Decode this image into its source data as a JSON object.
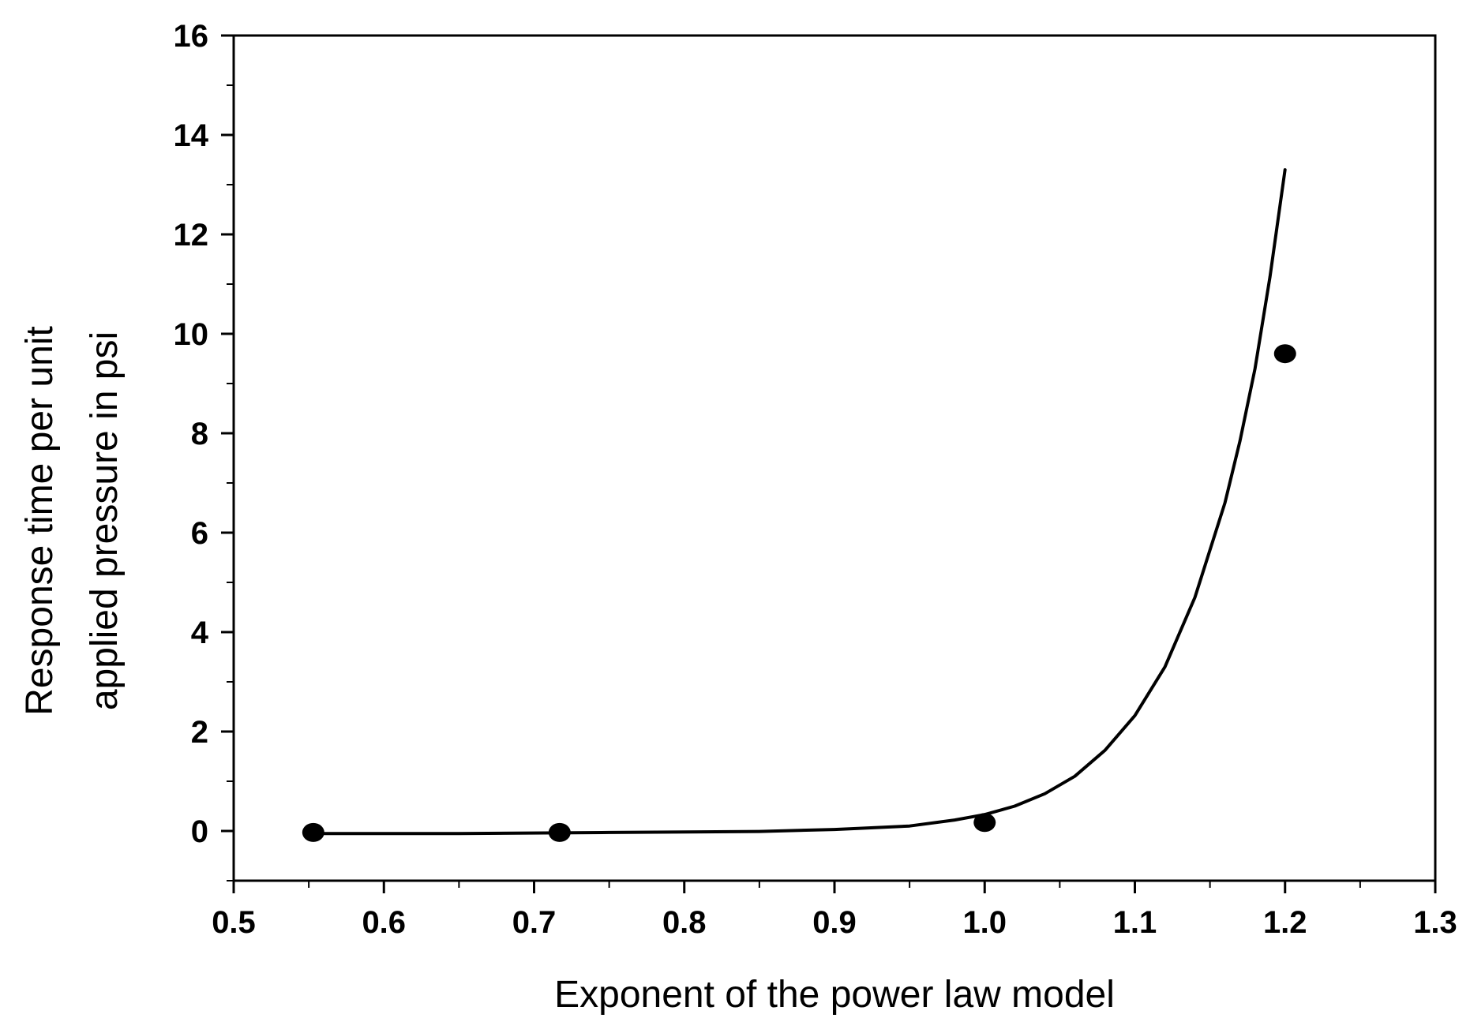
{
  "chart_data": {
    "type": "scatter",
    "title": "",
    "xlabel": "Exponent of the power law model",
    "ylabel": [
      "Response time per unit",
      "applied pressure in psi"
    ],
    "xlim": [
      0.5,
      1.3
    ],
    "ylim": [
      -1,
      16
    ],
    "x_ticks": [
      {
        "value": 0.5,
        "label": "0.5"
      },
      {
        "value": 0.6,
        "label": "0.6"
      },
      {
        "value": 0.7,
        "label": "0.7"
      },
      {
        "value": 0.8,
        "label": "0.8"
      },
      {
        "value": 0.9,
        "label": "0.9"
      },
      {
        "value": 1.0,
        "label": "1.0"
      },
      {
        "value": 1.1,
        "label": "1.1"
      },
      {
        "value": 1.2,
        "label": "1.2"
      },
      {
        "value": 1.3,
        "label": "1.3"
      }
    ],
    "y_ticks": [
      {
        "value": 0,
        "label": "0"
      },
      {
        "value": 2,
        "label": "2"
      },
      {
        "value": 4,
        "label": "4"
      },
      {
        "value": 6,
        "label": "6"
      },
      {
        "value": 8,
        "label": "8"
      },
      {
        "value": 10,
        "label": "10"
      },
      {
        "value": 12,
        "label": "12"
      },
      {
        "value": 14,
        "label": "14"
      },
      {
        "value": 16,
        "label": "16"
      }
    ],
    "grid": false,
    "legend": "none",
    "series": [
      {
        "kind": "points",
        "marker": "filled-circle",
        "color": "#000000",
        "points": [
          {
            "x": 0.553,
            "y": -0.03
          },
          {
            "x": 0.717,
            "y": -0.03
          },
          {
            "x": 1.0,
            "y": 0.17
          },
          {
            "x": 1.2,
            "y": 9.6
          }
        ]
      },
      {
        "kind": "line",
        "color": "#000000",
        "points": [
          {
            "x": 0.56,
            "y": -0.05
          },
          {
            "x": 0.65,
            "y": -0.05
          },
          {
            "x": 0.75,
            "y": -0.03
          },
          {
            "x": 0.85,
            "y": -0.01
          },
          {
            "x": 0.9,
            "y": 0.03
          },
          {
            "x": 0.95,
            "y": 0.1
          },
          {
            "x": 0.98,
            "y": 0.22
          },
          {
            "x": 1.0,
            "y": 0.33
          },
          {
            "x": 1.02,
            "y": 0.5
          },
          {
            "x": 1.04,
            "y": 0.75
          },
          {
            "x": 1.06,
            "y": 1.1
          },
          {
            "x": 1.08,
            "y": 1.62
          },
          {
            "x": 1.1,
            "y": 2.32
          },
          {
            "x": 1.12,
            "y": 3.3
          },
          {
            "x": 1.14,
            "y": 4.7
          },
          {
            "x": 1.16,
            "y": 6.6
          },
          {
            "x": 1.17,
            "y": 7.85
          },
          {
            "x": 1.18,
            "y": 9.3
          },
          {
            "x": 1.19,
            "y": 11.15
          },
          {
            "x": 1.2,
            "y": 13.3
          }
        ]
      }
    ]
  }
}
